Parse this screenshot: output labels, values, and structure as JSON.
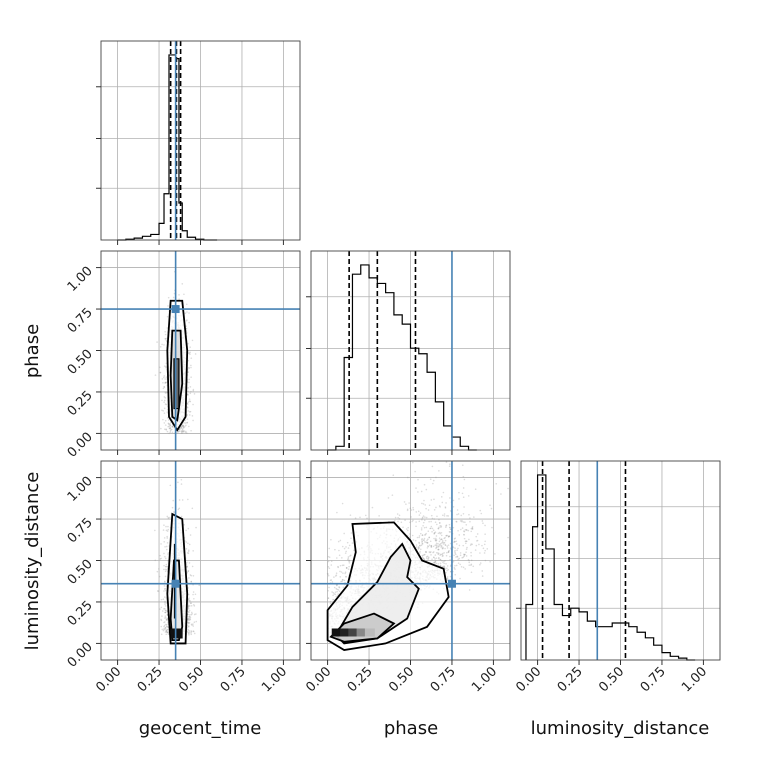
{
  "colors": {
    "truth": "#4682b4",
    "hist": "#000000",
    "grid": "#b0b0b0",
    "contour": "#000000",
    "scatter": "#9a9a9a"
  },
  "chart_data": {
    "type": "corner",
    "parameters": [
      "geocent_time",
      "phase",
      "luminosity_distance"
    ],
    "axis_range": [
      -0.1,
      1.1
    ],
    "ticks": [
      0.0,
      0.25,
      0.5,
      0.75,
      1.0
    ],
    "tick_labels": [
      "0.00",
      "0.25",
      "0.50",
      "0.75",
      "1.00"
    ],
    "grid": true,
    "truths": {
      "geocent_time": 0.35,
      "phase": 0.75,
      "luminosity_distance": 0.36
    },
    "quantiles": {
      "geocent_time": [
        0.32,
        0.355,
        0.38
      ],
      "phase": [
        0.13,
        0.3,
        0.53
      ],
      "luminosity_distance": [
        0.03,
        0.19,
        0.53
      ]
    },
    "histograms": {
      "geocent_time": {
        "edges": [
          0.0,
          0.05,
          0.1,
          0.15,
          0.2,
          0.25,
          0.28,
          0.31,
          0.33,
          0.35,
          0.37,
          0.39,
          0.42,
          0.47,
          0.52,
          0.6
        ],
        "counts": [
          0.0,
          0.004,
          0.01,
          0.02,
          0.03,
          0.09,
          0.25,
          1.0,
          1.0,
          0.98,
          0.2,
          0.05,
          0.015,
          0.004,
          0.0
        ]
      },
      "phase": {
        "edges": [
          0.0,
          0.05,
          0.1,
          0.15,
          0.2,
          0.25,
          0.3,
          0.35,
          0.4,
          0.45,
          0.5,
          0.55,
          0.6,
          0.65,
          0.7,
          0.75,
          0.8,
          0.85,
          0.9
        ],
        "counts": [
          0.0,
          0.02,
          0.5,
          0.95,
          1.0,
          0.93,
          0.9,
          0.85,
          0.73,
          0.68,
          0.55,
          0.52,
          0.42,
          0.26,
          0.13,
          0.07,
          0.02,
          0.0
        ]
      },
      "luminosity_distance": {
        "edges": [
          -0.07,
          -0.03,
          0.0,
          0.05,
          0.1,
          0.15,
          0.2,
          0.25,
          0.3,
          0.35,
          0.4,
          0.45,
          0.5,
          0.55,
          0.6,
          0.65,
          0.7,
          0.75,
          0.8,
          0.85,
          0.9,
          0.95
        ],
        "counts": [
          0.3,
          0.72,
          1.0,
          0.6,
          0.3,
          0.24,
          0.28,
          0.26,
          0.21,
          0.18,
          0.18,
          0.2,
          0.2,
          0.18,
          0.15,
          0.12,
          0.08,
          0.04,
          0.02,
          0.01,
          0.0
        ]
      }
    },
    "panels_2d": [
      {
        "x": "geocent_time",
        "y": "phase"
      },
      {
        "x": "geocent_time",
        "y": "luminosity_distance"
      },
      {
        "x": "phase",
        "y": "luminosity_distance"
      }
    ]
  }
}
